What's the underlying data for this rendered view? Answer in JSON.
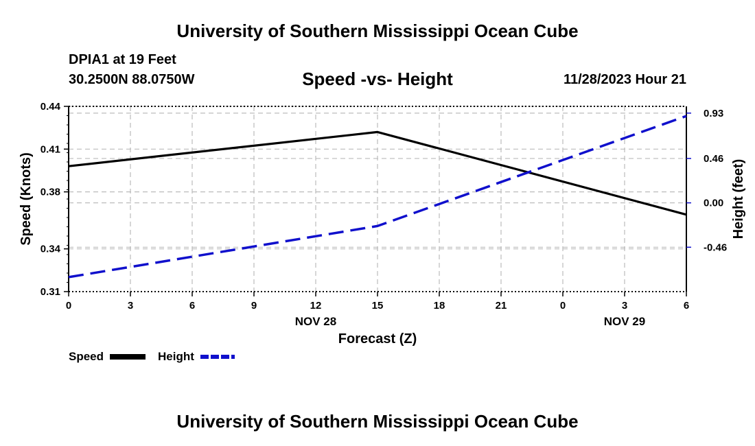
{
  "header": {
    "title": "University of Southern Mississippi Ocean Cube",
    "station": "DPIA1 at 19 Feet",
    "coords": "30.2500N  88.0750W",
    "subtitle": "Speed -vs- Height",
    "datetime": "11/28/2023 Hour 21"
  },
  "footer": {
    "title": "University of Southern Mississippi Ocean Cube"
  },
  "colors": {
    "speed": "#000000",
    "height": "#1010cc",
    "grid": "#bbbbbb"
  },
  "chart_data": {
    "type": "line",
    "xlabel": "Forecast (Z)",
    "x": [
      0,
      3,
      6,
      9,
      12,
      15,
      18,
      21,
      24,
      27,
      30
    ],
    "x_tick_labels": [
      "0",
      "3",
      "6",
      "9",
      "12",
      "15",
      "18",
      "21",
      "0",
      "3",
      "6"
    ],
    "date_labels": [
      {
        "x": 12,
        "label": "NOV 28"
      },
      {
        "x": 27,
        "label": "NOV 29"
      }
    ],
    "ylabel_left": "Speed (Knots)",
    "ylim_left": [
      0.31,
      0.44
    ],
    "yticks_left": [
      0.31,
      0.34,
      0.38,
      0.41,
      0.44
    ],
    "yticks_left_labels": [
      "0.31",
      "0.34",
      "0.38",
      "0.41",
      "0.44"
    ],
    "ylabel_right": "Height (feet)",
    "ylim_right": [
      -0.92,
      1.0
    ],
    "yticks_right": [
      -0.46,
      0.0,
      0.46,
      0.93
    ],
    "yticks_right_labels": [
      "-0.46",
      "0.00",
      "0.46",
      "0.93"
    ],
    "series": [
      {
        "name": "Speed",
        "axis": "left",
        "style": "solid",
        "points": [
          [
            0,
            0.398
          ],
          [
            15,
            0.422
          ],
          [
            30,
            0.364
          ]
        ]
      },
      {
        "name": "Height",
        "axis": "right",
        "style": "dashed",
        "points": [
          [
            0,
            -0.77
          ],
          [
            15,
            -0.24
          ],
          [
            30,
            0.9
          ]
        ]
      }
    ],
    "legend": {
      "placement": "bottom-left",
      "entries": [
        "Speed",
        "Height"
      ]
    },
    "grid": true
  }
}
